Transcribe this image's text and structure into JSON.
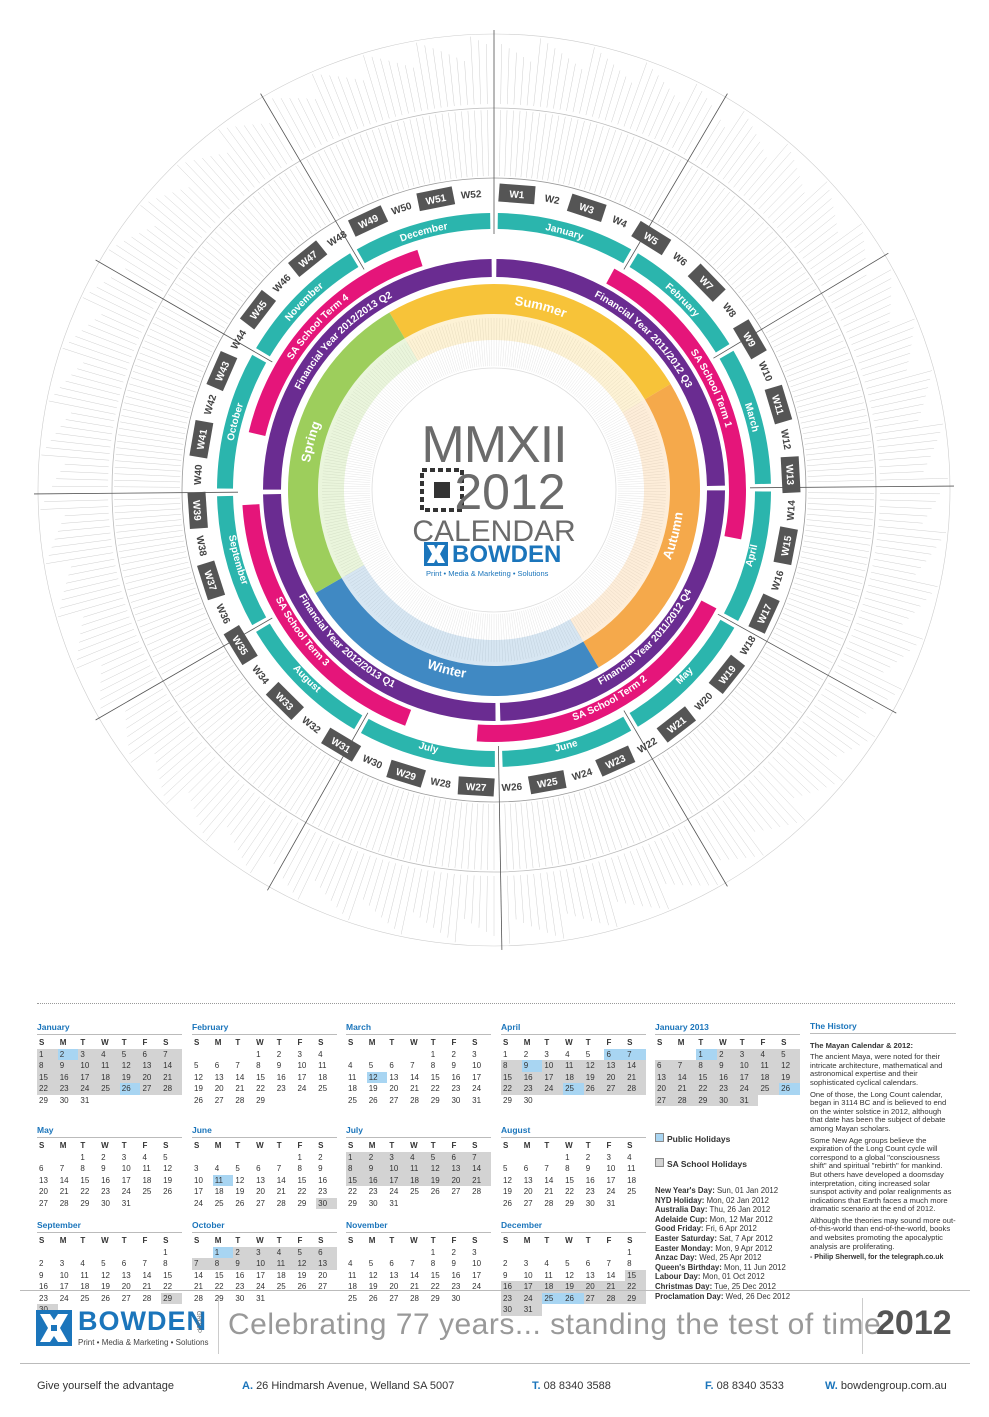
{
  "poster": {
    "title": "MMXII",
    "year": "2012",
    "subtitle": "CALENDAR",
    "brand": "BOWDEN",
    "brand_group": "GROUP",
    "brand_tagline": "Print • Media & Marketing • Solutions",
    "weeks": [
      "W1",
      "W2",
      "W3",
      "W4",
      "W5",
      "W6",
      "W7",
      "W8",
      "W9",
      "W10",
      "W11",
      "W12",
      "W13",
      "W14",
      "W15",
      "W16",
      "W17",
      "W18",
      "W19",
      "W20",
      "W21",
      "W22",
      "W23",
      "W24",
      "W25",
      "W26",
      "W27",
      "W28",
      "W29",
      "W30",
      "W31",
      "W32",
      "W33",
      "W34",
      "W35",
      "W36",
      "W37",
      "W38",
      "W39",
      "W40",
      "W41",
      "W42",
      "W43",
      "W44",
      "W45",
      "W46",
      "W47",
      "W48",
      "W49",
      "W50",
      "W51",
      "W52"
    ],
    "months": [
      "January",
      "February",
      "March",
      "April",
      "May",
      "June",
      "July",
      "August",
      "September",
      "October",
      "November",
      "December"
    ],
    "seasons": [
      "Summer",
      "Autumn",
      "Winter",
      "Spring"
    ],
    "financial_quarters": [
      "Financial Year 2011/2012 Q3",
      "Financial Year 2011/2012 Q4",
      "Financial Year 2012/2013 Q1",
      "Financial Year 2012/2013 Q2"
    ],
    "school_terms": [
      "SA School Term 1",
      "SA School Term 2",
      "SA School Term 3",
      "SA School Term 4"
    ]
  },
  "weekday_header": [
    "S",
    "M",
    "T",
    "W",
    "T",
    "F",
    "S"
  ],
  "calendars": [
    {
      "name": "January",
      "weeks": [
        [
          1,
          2,
          3,
          4,
          5,
          6,
          7
        ],
        [
          8,
          9,
          10,
          11,
          12,
          13,
          14
        ],
        [
          15,
          16,
          17,
          18,
          19,
          20,
          21
        ],
        [
          22,
          23,
          24,
          25,
          26,
          27,
          28
        ],
        [
          29,
          30,
          31,
          null,
          null,
          null,
          null
        ]
      ],
      "public_holidays": [
        2,
        26
      ],
      "school_holidays": [
        [
          1,
          28
        ]
      ]
    },
    {
      "name": "February",
      "weeks": [
        [
          null,
          null,
          null,
          1,
          2,
          3,
          4
        ],
        [
          5,
          6,
          7,
          8,
          9,
          10,
          11
        ],
        [
          12,
          13,
          14,
          15,
          16,
          17,
          18
        ],
        [
          19,
          20,
          21,
          22,
          23,
          24,
          25
        ],
        [
          26,
          27,
          28,
          29,
          null,
          null,
          null
        ]
      ],
      "public_holidays": [],
      "school_holidays": []
    },
    {
      "name": "March",
      "weeks": [
        [
          null,
          null,
          null,
          null,
          1,
          2,
          3
        ],
        [
          4,
          5,
          6,
          7,
          8,
          9,
          10
        ],
        [
          11,
          12,
          13,
          14,
          15,
          16,
          17
        ],
        [
          18,
          19,
          20,
          21,
          22,
          23,
          24
        ],
        [
          25,
          26,
          27,
          28,
          29,
          30,
          31
        ]
      ],
      "public_holidays": [
        12
      ],
      "school_holidays": []
    },
    {
      "name": "April",
      "weeks": [
        [
          1,
          2,
          3,
          4,
          5,
          6,
          7
        ],
        [
          8,
          9,
          10,
          11,
          12,
          13,
          14
        ],
        [
          15,
          16,
          17,
          18,
          19,
          20,
          21
        ],
        [
          22,
          23,
          24,
          25,
          26,
          27,
          28
        ],
        [
          29,
          30,
          null,
          null,
          null,
          null,
          null
        ]
      ],
      "public_holidays": [
        6,
        7,
        9,
        25
      ],
      "school_holidays": [
        [
          8,
          28
        ]
      ]
    },
    {
      "name": "May",
      "weeks": [
        [
          null,
          null,
          1,
          2,
          3,
          4,
          5
        ],
        [
          6,
          7,
          8,
          9,
          10,
          11,
          12
        ],
        [
          13,
          14,
          15,
          16,
          17,
          18,
          19
        ],
        [
          20,
          21,
          22,
          23,
          24,
          25,
          26
        ],
        [
          27,
          28,
          29,
          30,
          31,
          null,
          null
        ]
      ],
      "public_holidays": [],
      "school_holidays": []
    },
    {
      "name": "June",
      "weeks": [
        [
          null,
          null,
          null,
          null,
          null,
          1,
          2
        ],
        [
          3,
          4,
          5,
          6,
          7,
          8,
          9
        ],
        [
          10,
          11,
          12,
          13,
          14,
          15,
          16
        ],
        [
          17,
          18,
          19,
          20,
          21,
          22,
          23
        ],
        [
          24,
          25,
          26,
          27,
          28,
          29,
          30
        ]
      ],
      "public_holidays": [
        11
      ],
      "school_holidays": [
        [
          30,
          30
        ]
      ]
    },
    {
      "name": "July",
      "weeks": [
        [
          1,
          2,
          3,
          4,
          5,
          6,
          7
        ],
        [
          8,
          9,
          10,
          11,
          12,
          13,
          14
        ],
        [
          15,
          16,
          17,
          18,
          19,
          20,
          21
        ],
        [
          22,
          23,
          24,
          25,
          26,
          27,
          28
        ],
        [
          29,
          30,
          31,
          null,
          null,
          null,
          null
        ]
      ],
      "public_holidays": [],
      "school_holidays": [
        [
          1,
          21
        ]
      ]
    },
    {
      "name": "August",
      "weeks": [
        [
          null,
          null,
          null,
          1,
          2,
          3,
          4
        ],
        [
          5,
          6,
          7,
          8,
          9,
          10,
          11
        ],
        [
          12,
          13,
          14,
          15,
          16,
          17,
          18
        ],
        [
          19,
          20,
          21,
          22,
          23,
          24,
          25
        ],
        [
          26,
          27,
          28,
          29,
          30,
          31,
          null
        ]
      ],
      "public_holidays": [],
      "school_holidays": []
    },
    {
      "name": "September",
      "weeks": [
        [
          null,
          null,
          null,
          null,
          null,
          null,
          1
        ],
        [
          2,
          3,
          4,
          5,
          6,
          7,
          8
        ],
        [
          9,
          10,
          11,
          12,
          13,
          14,
          15
        ],
        [
          16,
          17,
          18,
          19,
          20,
          21,
          22
        ],
        [
          23,
          24,
          25,
          26,
          27,
          28,
          29
        ],
        [
          30,
          null,
          null,
          null,
          null,
          null,
          null
        ]
      ],
      "public_holidays": [],
      "school_holidays": [
        [
          29,
          30
        ]
      ]
    },
    {
      "name": "October",
      "weeks": [
        [
          null,
          1,
          2,
          3,
          4,
          5,
          6
        ],
        [
          7,
          8,
          9,
          10,
          11,
          12,
          13
        ],
        [
          14,
          15,
          16,
          17,
          18,
          19,
          20
        ],
        [
          21,
          22,
          23,
          24,
          25,
          26,
          27
        ],
        [
          28,
          29,
          30,
          31,
          null,
          null,
          null
        ]
      ],
      "public_holidays": [
        1
      ],
      "school_holidays": [
        [
          1,
          13
        ]
      ]
    },
    {
      "name": "November",
      "weeks": [
        [
          null,
          null,
          null,
          null,
          1,
          2,
          3
        ],
        [
          4,
          5,
          6,
          7,
          8,
          9,
          10
        ],
        [
          11,
          12,
          13,
          14,
          15,
          16,
          17
        ],
        [
          18,
          19,
          20,
          21,
          22,
          23,
          24
        ],
        [
          25,
          26,
          27,
          28,
          29,
          30,
          null
        ]
      ],
      "public_holidays": [],
      "school_holidays": []
    },
    {
      "name": "December",
      "weeks": [
        [
          null,
          null,
          null,
          null,
          null,
          null,
          1
        ],
        [
          2,
          3,
          4,
          5,
          6,
          7,
          8
        ],
        [
          9,
          10,
          11,
          12,
          13,
          14,
          15
        ],
        [
          16,
          17,
          18,
          19,
          20,
          21,
          22
        ],
        [
          23,
          24,
          25,
          26,
          27,
          28,
          29
        ],
        [
          30,
          31,
          null,
          null,
          null,
          null,
          null
        ]
      ],
      "public_holidays": [
        25,
        26
      ],
      "school_holidays": [
        [
          15,
          31
        ]
      ]
    },
    {
      "name": "January 2013",
      "weeks": [
        [
          null,
          null,
          1,
          2,
          3,
          4,
          5
        ],
        [
          6,
          7,
          8,
          9,
          10,
          11,
          12
        ],
        [
          13,
          14,
          15,
          16,
          17,
          18,
          19
        ],
        [
          20,
          21,
          22,
          23,
          24,
          25,
          26
        ],
        [
          27,
          28,
          29,
          30,
          31,
          null,
          null
        ]
      ],
      "public_holidays": [
        1,
        26
      ],
      "school_holidays": [
        [
          1,
          31
        ]
      ]
    }
  ],
  "legend": {
    "public": "Public Holidays",
    "school": "SA School Holidays"
  },
  "holidays": [
    {
      "name": "New Year's Day:",
      "date": "Sun, 01 Jan 2012"
    },
    {
      "name": "NYD Holiday:",
      "date": "Mon, 02 Jan 2012"
    },
    {
      "name": "Australia Day:",
      "date": "Thu, 26 Jan 2012"
    },
    {
      "name": "Adelaide Cup:",
      "date": "Mon, 12 Mar 2012"
    },
    {
      "name": "Good Friday:",
      "date": "Fri, 6 Apr 2012"
    },
    {
      "name": "Easter Saturday:",
      "date": "Sat, 7 Apr 2012"
    },
    {
      "name": "Easter Monday:",
      "date": "Mon, 9 Apr 2012"
    },
    {
      "name": "Anzac Day:",
      "date": "Wed, 25 Apr 2012"
    },
    {
      "name": "Queen's Birthday:",
      "date": "Mon, 11 Jun 2012"
    },
    {
      "name": "Labour Day:",
      "date": "Mon, 01 Oct 2012"
    },
    {
      "name": "Christmas Day:",
      "date": "Tue, 25 Dec 2012"
    },
    {
      "name": "Proclamation Day:",
      "date": "Wed, 26 Dec 2012"
    }
  ],
  "history": {
    "title": "The History",
    "heading": "The Mayan Calendar & 2012:",
    "paragraphs": [
      "The ancient Maya, were noted for their intricate architecture, mathematical and astronomical expertise and their sophisticated cyclical calendars.",
      "One of those, the Long Count calendar, began in 3114 BC and is believed to end on the winter solstice in 2012, although that date has been the subject of debate among Mayan scholars.",
      "Some New Age groups believe the expiration of the Long Count cycle will correspond to a global \"consciousness shift\" and spiritual \"rebirth\" for mankind. But others have developed a doomsday interpretation, citing increased solar sunspot activity and polar realignments as indications that Earth faces a much more dramatic scenario at the end of 2012.",
      "Although the theories may sound more out-of-this-world than end-of-the-world, books and websites promoting the apocalyptic analysis are proliferating."
    ],
    "credit": "- Philip Sherwell, for the telegraph.co.uk"
  },
  "footer": {
    "tagline": "Celebrating 77 years... standing the test of time",
    "year": "2012",
    "slogan": "Give yourself the advantage",
    "contacts": [
      {
        "key": "A.",
        "text": "26 Hindmarsh Avenue, Welland SA 5007"
      },
      {
        "key": "T.",
        "text": "08 8340 3588"
      },
      {
        "key": "F.",
        "text": "08 8340 3533"
      },
      {
        "key": "W.",
        "text": "bowdengroup.com.au"
      }
    ]
  }
}
